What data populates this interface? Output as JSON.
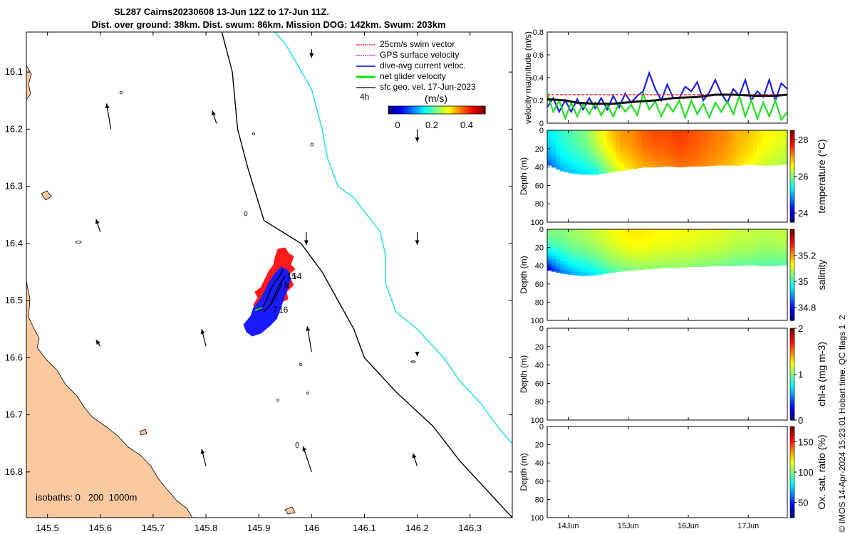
{
  "title": {
    "line1": "SL287 Cairns20230608 13-Jun 12Z to 17-Jun 11Z.",
    "line2": "Dist. over ground: 38km. Dist. swum: 86km. Mission DOG: 142km. Swum: 203km"
  },
  "footer": "© IMOS 14-Apr-2024 15:23:01 Hobart time. QC flags 1  2",
  "colors": {
    "land": "#fac9a0",
    "cyan_isobath": "#32e0e6",
    "track_red": "#ff1a1a",
    "track_blue": "#1a1aff",
    "net_green": "#22dd22"
  },
  "chart_data": [
    {
      "type": "scatter",
      "name": "map",
      "xlabel": "",
      "ylabel": "",
      "xlim": [
        145.46,
        146.38
      ],
      "ylim": [
        -16.88,
        -16.03
      ],
      "x_ticks": [
        145.5,
        145.6,
        145.7,
        145.8,
        145.9,
        146,
        146.1,
        146.2,
        146.3
      ],
      "x_tick_labels": [
        "145.5",
        "145.6",
        "145.7",
        "145.8",
        "145.9",
        "146",
        "146.1",
        "146.2",
        "146.3"
      ],
      "y_ticks": [
        -16.1,
        -16.2,
        -16.3,
        -16.4,
        -16.5,
        -16.6,
        -16.7,
        -16.8
      ],
      "y_tick_labels": [
        "16.1",
        "16.2",
        "16.3",
        "16.4",
        "16.5",
        "16.6",
        "16.7",
        "16.8"
      ],
      "legend": {
        "position": "top-right",
        "entries": [
          "25cm/s swim vector",
          "GPS surface velocity",
          "dive-avg current veloc.",
          "net glider velocity",
          "sfc geo. vel. 17-Jun-2023"
        ],
        "colors": [
          "#ff0000",
          "#ee00ee",
          "#0000ff",
          "#00ee00",
          "#000000"
        ]
      },
      "colorbar": {
        "label": "(m/s)",
        "ticks": [
          "0",
          "0.2",
          "0.4"
        ],
        "range": [
          -0.05,
          0.5
        ]
      },
      "time_step_label": "4h",
      "isobaths_label": "isobaths: 0   200  1000m",
      "track_labels": [
        "15",
        "14",
        "8",
        "16",
        "7"
      ],
      "isobath_200m": [
        [
          145.83,
          -16.03
        ],
        [
          145.85,
          -16.1
        ],
        [
          145.86,
          -16.2
        ],
        [
          145.88,
          -16.27
        ],
        [
          145.91,
          -16.36
        ],
        [
          145.98,
          -16.4
        ],
        [
          146.02,
          -16.45
        ],
        [
          146.05,
          -16.5
        ],
        [
          146.08,
          -16.55
        ],
        [
          146.1,
          -16.6
        ],
        [
          146.16,
          -16.66
        ],
        [
          146.23,
          -16.72
        ],
        [
          146.28,
          -16.78
        ],
        [
          146.33,
          -16.83
        ],
        [
          146.38,
          -16.88
        ]
      ],
      "isobath_1000m": [
        [
          145.93,
          -16.03
        ],
        [
          145.95,
          -16.05
        ],
        [
          146.0,
          -16.13
        ],
        [
          146.02,
          -16.2
        ],
        [
          146.03,
          -16.25
        ],
        [
          146.05,
          -16.3
        ],
        [
          146.08,
          -16.32
        ],
        [
          146.13,
          -16.38
        ],
        [
          146.14,
          -16.42
        ],
        [
          146.14,
          -16.47
        ],
        [
          146.16,
          -16.52
        ],
        [
          146.2,
          -16.55
        ],
        [
          146.25,
          -16.6
        ],
        [
          146.28,
          -16.64
        ],
        [
          146.32,
          -16.68
        ],
        [
          146.36,
          -16.73
        ],
        [
          146.38,
          -16.75
        ]
      ],
      "geo_arrows": [
        {
          "lon": 145.62,
          "lat": -16.2,
          "u": -0.01,
          "v": 0.06
        },
        {
          "lon": 145.82,
          "lat": -16.19,
          "u": -0.01,
          "v": 0.03
        },
        {
          "lon": 146.0,
          "lat": -16.06,
          "u": 0.0,
          "v": -0.02
        },
        {
          "lon": 146.2,
          "lat": -16.2,
          "u": 0.0,
          "v": -0.03
        },
        {
          "lon": 145.6,
          "lat": -16.38,
          "u": -0.01,
          "v": 0.03
        },
        {
          "lon": 145.99,
          "lat": -16.38,
          "u": 0.0,
          "v": -0.03
        },
        {
          "lon": 146.2,
          "lat": -16.38,
          "u": 0.0,
          "v": -0.03
        },
        {
          "lon": 145.6,
          "lat": -16.58,
          "u": -0.01,
          "v": 0.015
        },
        {
          "lon": 145.8,
          "lat": -16.58,
          "u": -0.01,
          "v": 0.04
        },
        {
          "lon": 146.0,
          "lat": -16.59,
          "u": -0.01,
          "v": 0.06
        },
        {
          "lon": 146.2,
          "lat": -16.59,
          "u": 0.0,
          "v": -0.01
        },
        {
          "lon": 145.8,
          "lat": -16.79,
          "u": -0.01,
          "v": 0.04
        },
        {
          "lon": 146.0,
          "lat": -16.8,
          "u": -0.02,
          "v": 0.06
        },
        {
          "lon": 146.2,
          "lat": -16.79,
          "u": -0.01,
          "v": 0.03
        }
      ]
    },
    {
      "type": "line",
      "name": "velocity",
      "ylabel": "velocity magnitude (m/s)",
      "xlim": [
        13.5,
        17.5
      ],
      "ylim": [
        0,
        0.8
      ],
      "y_ticks": [
        0,
        0.2,
        0.4,
        0.6,
        0.8
      ],
      "y_tick_labels": [
        "0",
        "0.2",
        "0.4",
        "0.6",
        "0.8"
      ],
      "series": [
        {
          "name": "dive-avg current veloc.",
          "color": "#1f1fe6",
          "x": [
            13.5,
            13.6,
            13.7,
            13.8,
            13.9,
            14.0,
            14.1,
            14.2,
            14.3,
            14.4,
            14.5,
            14.6,
            14.7,
            14.8,
            14.9,
            15.0,
            15.1,
            15.2,
            15.3,
            15.4,
            15.5,
            15.6,
            15.7,
            15.8,
            15.9,
            16.0,
            16.1,
            16.2,
            16.3,
            16.4,
            16.5,
            16.6,
            16.7,
            16.8,
            16.9,
            17.0,
            17.1,
            17.2,
            17.3,
            17.4,
            17.5
          ],
          "y": [
            0.14,
            0.22,
            0.1,
            0.2,
            0.1,
            0.21,
            0.12,
            0.22,
            0.13,
            0.22,
            0.12,
            0.24,
            0.14,
            0.26,
            0.18,
            0.24,
            0.28,
            0.44,
            0.3,
            0.2,
            0.34,
            0.22,
            0.22,
            0.32,
            0.28,
            0.36,
            0.2,
            0.27,
            0.38,
            0.26,
            0.18,
            0.3,
            0.24,
            0.38,
            0.2,
            0.28,
            0.23,
            0.38,
            0.2,
            0.35,
            0.3
          ]
        },
        {
          "name": "net glider velocity",
          "color": "#22dd22",
          "x": [
            13.5,
            13.6,
            13.7,
            13.8,
            13.9,
            14.0,
            14.1,
            14.2,
            14.3,
            14.4,
            14.5,
            14.6,
            14.7,
            14.8,
            14.9,
            15.0,
            15.1,
            15.2,
            15.3,
            15.4,
            15.5,
            15.6,
            15.7,
            15.8,
            15.9,
            16.0,
            16.1,
            16.2,
            16.3,
            16.4,
            16.5,
            16.6,
            16.7,
            16.8,
            16.9,
            17.0,
            17.1,
            17.2,
            17.3,
            17.4,
            17.5
          ],
          "y": [
            0.27,
            0.1,
            0.2,
            0.04,
            0.18,
            0.06,
            0.17,
            0.08,
            0.18,
            0.07,
            0.16,
            0.06,
            0.18,
            0.1,
            0.16,
            0.07,
            0.26,
            0.12,
            0.19,
            0.06,
            0.17,
            0.1,
            0.2,
            0.05,
            0.2,
            0.08,
            0.17,
            0.05,
            0.18,
            0.1,
            0.19,
            0.08,
            0.24,
            0.06,
            0.2,
            0.04,
            0.18,
            0.06,
            0.2,
            0.03,
            0.1
          ]
        },
        {
          "name": "25cm/s swim vector",
          "color": "#ff2020",
          "x": [
            13.5,
            17.5
          ],
          "y": [
            0.25,
            0.25
          ]
        },
        {
          "name": "sfc geo. vel.",
          "color": "#111111",
          "x": [
            13.5,
            13.8,
            14.0,
            14.3,
            14.6,
            15.0,
            15.3,
            15.6,
            16.0,
            16.3,
            16.6,
            17.0,
            17.3,
            17.5
          ],
          "y": [
            0.21,
            0.2,
            0.18,
            0.17,
            0.17,
            0.19,
            0.2,
            0.22,
            0.23,
            0.25,
            0.25,
            0.24,
            0.24,
            0.25
          ]
        }
      ]
    },
    {
      "type": "heatmap",
      "name": "temperature",
      "ylabel": "Depth (m)",
      "clabel": "temperature (°C)",
      "xlim": [
        13.5,
        17.5
      ],
      "ylim": [
        100,
        0
      ],
      "clim": [
        23.5,
        28.5
      ],
      "y_tick_labels": [
        "0",
        "20",
        "40",
        "60",
        "80",
        "100"
      ],
      "c_ticks": [
        24,
        26,
        28
      ],
      "c_tick_labels": [
        "24",
        "26",
        "28"
      ],
      "x": [
        13.5,
        13.7,
        13.9,
        14.1,
        14.3,
        14.5,
        14.7,
        14.9,
        15.1,
        15.3,
        15.5,
        15.7,
        15.9,
        16.1,
        16.3,
        16.5,
        16.7,
        16.9,
        17.1,
        17.3,
        17.5
      ],
      "max_depth": [
        38,
        44,
        47,
        48,
        48,
        46,
        44,
        42,
        40,
        40,
        39,
        40,
        39,
        39,
        38,
        38,
        38,
        37,
        38,
        38,
        37
      ],
      "surface": [
        25.3,
        25.6,
        25.8,
        26.0,
        26.4,
        26.8,
        27.1,
        27.2,
        27.4,
        27.5,
        27.5,
        27.6,
        27.5,
        27.4,
        27.3,
        27.2,
        27.0,
        26.9,
        26.7,
        26.6,
        26.5
      ],
      "bottom": [
        24.6,
        25.0,
        25.1,
        25.2,
        25.4,
        26.0,
        26.5,
        26.8,
        27.0,
        27.1,
        27.2,
        27.3,
        27.3,
        27.2,
        27.1,
        27.0,
        26.8,
        26.6,
        26.4,
        26.3,
        26.2
      ]
    },
    {
      "type": "heatmap",
      "name": "salinity",
      "ylabel": "Depth (m)",
      "clabel": "salinity",
      "xlim": [
        13.5,
        17.5
      ],
      "ylim": [
        100,
        0
      ],
      "clim": [
        34.7,
        35.4
      ],
      "y_tick_labels": [
        "0",
        "20",
        "40",
        "60",
        "80",
        "100"
      ],
      "c_ticks": [
        34.8,
        35,
        35.2
      ],
      "c_tick_labels": [
        "34.8",
        "35",
        "35.2"
      ],
      "x": [
        13.5,
        13.7,
        13.9,
        14.1,
        14.3,
        14.5,
        14.7,
        14.9,
        15.1,
        15.3,
        15.5,
        15.7,
        15.9,
        16.1,
        16.3,
        16.5,
        16.7,
        16.9,
        17.1,
        17.3,
        17.5
      ],
      "max_depth": [
        45,
        48,
        50,
        51,
        50,
        48,
        46,
        45,
        44,
        43,
        42,
        42,
        41,
        41,
        40,
        40,
        40,
        39,
        40,
        40,
        39
      ],
      "surface": [
        35.05,
        35.05,
        35.07,
        35.08,
        35.1,
        35.12,
        35.14,
        35.15,
        35.15,
        35.14,
        35.14,
        35.13,
        35.13,
        35.12,
        35.12,
        35.11,
        35.1,
        35.1,
        35.09,
        35.09,
        35.1
      ],
      "bottom": [
        34.78,
        34.86,
        34.9,
        34.92,
        34.95,
        35.0,
        35.03,
        35.05,
        35.06,
        35.06,
        35.06,
        35.06,
        35.06,
        35.05,
        35.05,
        35.04,
        35.03,
        35.03,
        35.02,
        35.02,
        35.02
      ]
    },
    {
      "type": "heatmap",
      "name": "chl-a",
      "ylabel": "Depth (m)",
      "clabel": "chl-a (mg m-3)",
      "xlim": [
        13.5,
        17.5
      ],
      "ylim": [
        100,
        0
      ],
      "clim": [
        0,
        2
      ],
      "y_tick_labels": [
        "0",
        "20",
        "40",
        "60",
        "80",
        "100"
      ],
      "c_ticks": [
        0,
        1,
        2
      ],
      "c_tick_labels": [
        "0",
        "1",
        "2"
      ]
    },
    {
      "type": "heatmap",
      "name": "oxygen",
      "ylabel": "Depth (m)",
      "clabel": "Ox. sat. ratio (%)",
      "xlim": [
        13.5,
        17.5
      ],
      "ylim": [
        100,
        0
      ],
      "clim": [
        25,
        175
      ],
      "y_tick_labels": [
        "0",
        "20",
        "40",
        "60",
        "80",
        "100"
      ],
      "c_ticks": [
        50,
        100,
        150
      ],
      "c_tick_labels": [
        "50",
        "100",
        "150"
      ],
      "x_ticks": [
        13.85,
        14.85,
        15.85,
        16.85
      ],
      "x_tick_labels": [
        "14Jun",
        "15Jun",
        "16Jun",
        "17Jun"
      ]
    }
  ]
}
